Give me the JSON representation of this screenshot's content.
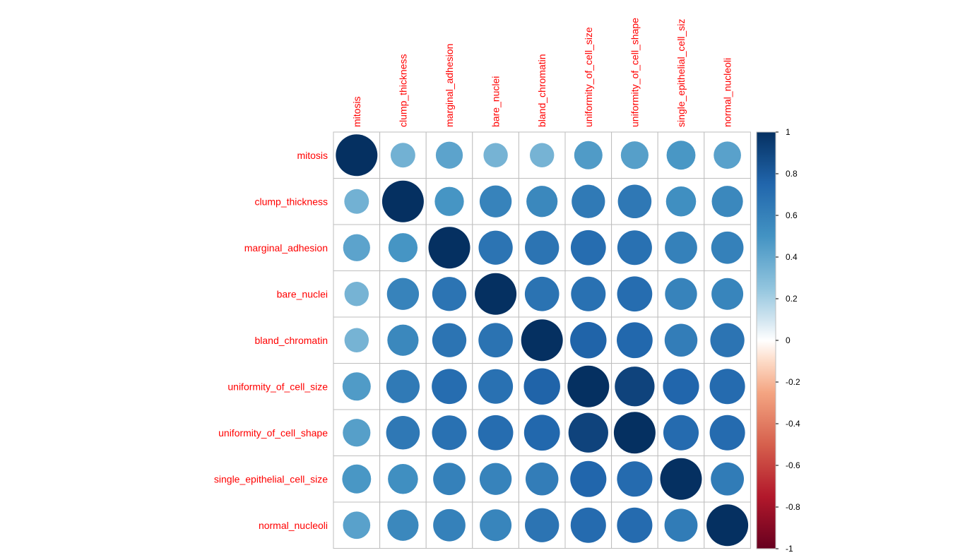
{
  "chart_data": {
    "type": "heatmap",
    "glyph": "circle",
    "variables": [
      "mitosis",
      "clump_thickness",
      "marginal_adhesion",
      "bare_nuclei",
      "bland_chromatin",
      "uniformity_of_cell_size",
      "uniformity_of_cell_shape",
      "single_epithelial_cell_size",
      "normal_nucleoli"
    ],
    "column_labels": [
      "mitosis",
      "clump_thickness",
      "marginal_adhesion",
      "bare_nuclei",
      "bland_chromatin",
      "uniformity_of_cell_size",
      "uniformity_of_cell_shape",
      "single_epithelial_cell_siz",
      "normal_nucleoli"
    ],
    "matrix": [
      [
        1.0,
        0.35,
        0.42,
        0.34,
        0.34,
        0.46,
        0.44,
        0.48,
        0.43
      ],
      [
        0.35,
        1.0,
        0.49,
        0.59,
        0.56,
        0.64,
        0.65,
        0.52,
        0.56
      ],
      [
        0.42,
        0.49,
        1.0,
        0.67,
        0.67,
        0.71,
        0.69,
        0.6,
        0.6
      ],
      [
        0.34,
        0.59,
        0.67,
        1.0,
        0.68,
        0.69,
        0.71,
        0.59,
        0.58
      ],
      [
        0.34,
        0.56,
        0.67,
        0.68,
        1.0,
        0.76,
        0.74,
        0.62,
        0.67
      ],
      [
        0.46,
        0.64,
        0.71,
        0.69,
        0.76,
        1.0,
        0.91,
        0.75,
        0.72
      ],
      [
        0.44,
        0.65,
        0.69,
        0.71,
        0.74,
        0.91,
        1.0,
        0.72,
        0.72
      ],
      [
        0.48,
        0.52,
        0.6,
        0.59,
        0.62,
        0.75,
        0.72,
        1.0,
        0.63
      ],
      [
        0.43,
        0.56,
        0.6,
        0.58,
        0.67,
        0.72,
        0.72,
        0.63,
        1.0
      ]
    ],
    "color_scale": {
      "range": [
        -1,
        1
      ],
      "ticks": [
        "1",
        "0.8",
        "0.6",
        "0.4",
        "0.2",
        "0",
        "-0.2",
        "-0.4",
        "-0.6",
        "-0.8",
        "-1"
      ],
      "stops": [
        {
          "v": -1.0,
          "color": "#67001F"
        },
        {
          "v": -0.75,
          "color": "#B2182B"
        },
        {
          "v": -0.5,
          "color": "#D6604D"
        },
        {
          "v": -0.25,
          "color": "#F4A582"
        },
        {
          "v": -0.1,
          "color": "#FDDBC7"
        },
        {
          "v": 0.0,
          "color": "#FFFFFF"
        },
        {
          "v": 0.1,
          "color": "#D1E5F0"
        },
        {
          "v": 0.25,
          "color": "#92C5DE"
        },
        {
          "v": 0.5,
          "color": "#4393C3"
        },
        {
          "v": 0.75,
          "color": "#2166AC"
        },
        {
          "v": 1.0,
          "color": "#053061"
        }
      ]
    },
    "label_color": "#FF0000",
    "grid_color": "#BEBEBE",
    "legend_placement": "right"
  }
}
